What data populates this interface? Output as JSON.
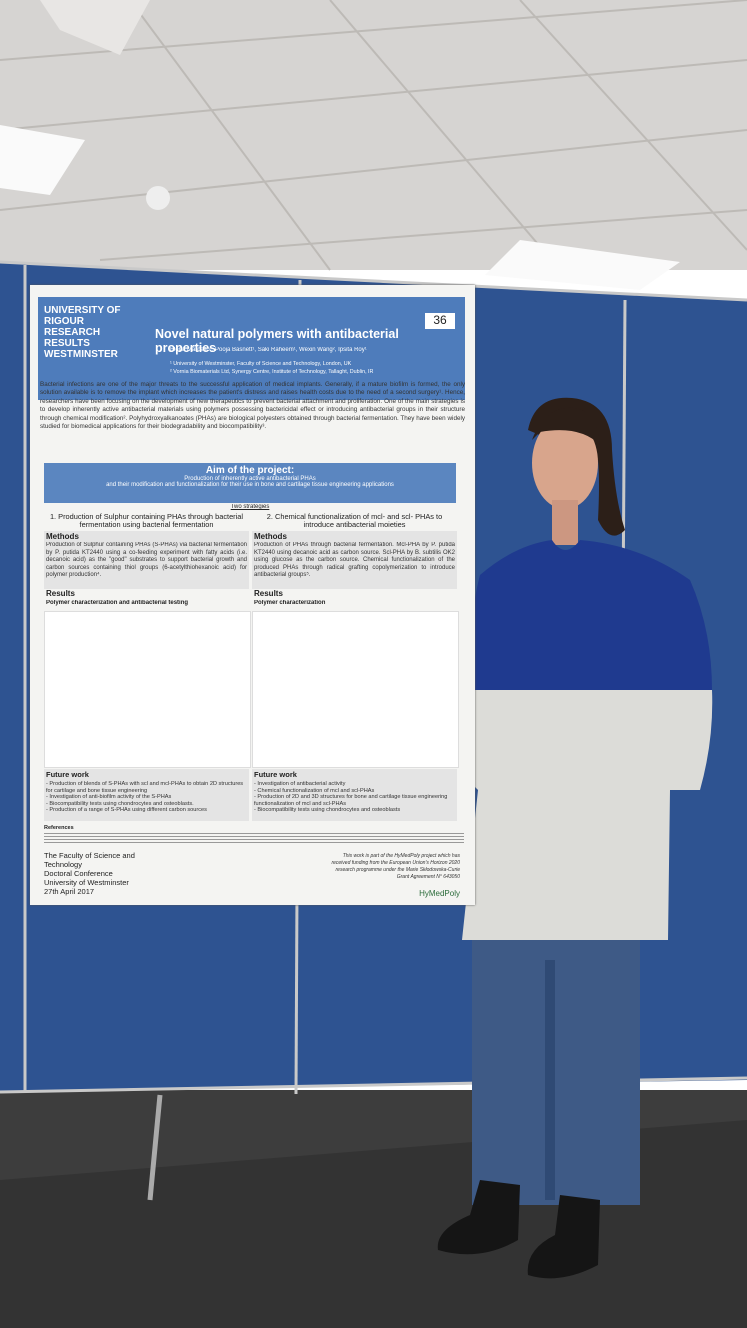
{
  "poster": {
    "number": "36",
    "logo": [
      "UNIVERSITY OF",
      "RIGOUR",
      "RESEARCH",
      "RESULTS",
      "WESTMINSTER"
    ],
    "title": "Novel natural polymers with antibacterial properties",
    "authors": "Elena Marcello¹, Pooja Basnett¹, Saki Raheem¹, Wexin Wang², Ipsita Roy¹",
    "affiliations": [
      "¹ University of Westminster, Faculty of Science and Technology, London, UK",
      "² Vornia Biomaterials Ltd, Synergy Centre, Institute of Technology, Tallaght, Dublin, IR"
    ],
    "intro": "Bacterial infections are one of the major threats to the successful application of medical implants. Generally, if a mature biofilm is formed, the only solution available is to remove the implant which increases the patient's distress and raises health costs due to the need of a second surgery¹. Hence, researchers have been focusing on the development of new therapeutics to prevent bacterial attachment and proliferation. One of the main strategies is to develop inherently active antibacterial materials using polymers possessing bactericidal effect or introducing antibacterial groups in their structure through chemical modification². Polyhydroxyalkanoates (PHAs) are biological polyesters obtained through bacterial fermentation. They have been widely studied for biomedical applications for their biodegradability and biocompatibility³.",
    "aim_heading": "Aim of the project:",
    "aim": [
      "Production of inherently active antibacterial PHAs",
      "and their modification and functionalization for their use in bone and cartilage tissue engineering applications"
    ],
    "strategies": "Two strategies",
    "columns": [
      {
        "heading": "1. Production of Sulphur containing PHAs through bacterial fermentation using bacterial fermentation",
        "methods_heading": "Methods",
        "methods": "Production of Sulphur containing PHAs (S-PHAs) via bacterial fermentation by P. putida KT2440 using a co-feeding experiment with fatty acids (i.e. decanoic acid) as the \"good\" substrates to support bacterial growth and carbon sources containing thiol groups (6-acetylthiohexanoic acid) for polymer production⁴.",
        "results_heading": "Results",
        "results_sub": "Polymer characterization and antibacterial testing",
        "future_heading": "Future work",
        "future": [
          "- Production of blends of S-PHAs with scl and mcl-PHAs to obtain 2D structures for cartilage and bone tissue engineering",
          "- Investigation of anti-biofilm activity of the S-PHAs",
          "- Biocompatibility tests using chondrocytes and osteoblasts.",
          "- Production of a range of S-PHAs using different carbon sources"
        ]
      },
      {
        "heading": "2. Chemical functionalization of mcl- and scl- PHAs to introduce antibacterial moieties",
        "methods_heading": "Methods",
        "methods": "Production of PHAs through bacterial fermentation. Mcl-PHA by P. putida KT2440 using decanoic acid as carbon source. Scl-PHA by B. subtilis OK2 using glucose as the carbon source. Chemical functionalization of the produced PHAs through radical grafting copolymerization to introduce antibacterial groups⁵.",
        "results_heading": "Results",
        "results_sub": "Polymer characterization",
        "future_heading": "Future work",
        "future": [
          "- Investigation of antibacterial activity",
          "- Chemical functionalization of mcl and scl-PHAs",
          "- Production of 2D and 3D structures for bone and cartilage tissue engineering functionalization of mcl and scl-PHAs",
          "- Biocompatibility tests using chondrocytes and osteoblasts"
        ]
      }
    ],
    "references_heading": "References",
    "footer_left": [
      "The Faculty of Science and",
      "Technology",
      "Doctoral Conference",
      "University of Westminster",
      "27th April 2017"
    ],
    "footer_right": "This work is part of the HyMedPoly project which has received funding from the European Union's Horizon 2020 research programme under the Marie Skłodowska-Curie Grant Agreement N° 643050",
    "brand": "HyMedPoly"
  }
}
